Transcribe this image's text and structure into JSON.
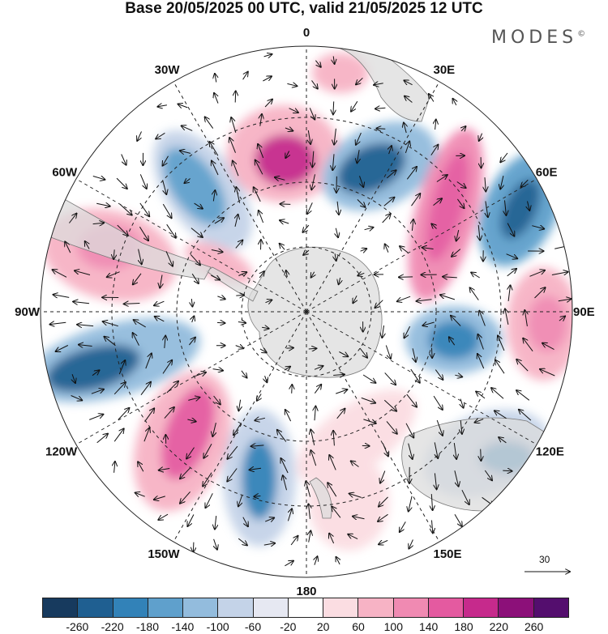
{
  "title": "Base 20/05/2025 00 UTC, valid 21/05/2025 12 UTC",
  "brand": "MODES",
  "brand_mark": "©",
  "longitude_labels": [
    {
      "text": "0",
      "lon": 0
    },
    {
      "text": "30E",
      "lon": 30
    },
    {
      "text": "60E",
      "lon": 60
    },
    {
      "text": "90E",
      "lon": 90
    },
    {
      "text": "120E",
      "lon": 120
    },
    {
      "text": "150E",
      "lon": 150
    },
    {
      "text": "180",
      "lon": 180
    },
    {
      "text": "150W",
      "lon": 210
    },
    {
      "text": "120W",
      "lon": 240
    },
    {
      "text": "90W",
      "lon": 270
    },
    {
      "text": "60W",
      "lon": 300
    },
    {
      "text": "30W",
      "lon": 330
    }
  ],
  "reference_vector": {
    "label": "30",
    "icon": "arrow-right-icon"
  },
  "colorbar": {
    "ticks": [
      "-260",
      "-220",
      "-180",
      "-140",
      "-100",
      "-60",
      "-20",
      "20",
      "60",
      "100",
      "140",
      "180",
      "220",
      "260"
    ],
    "colors": [
      "#173a5e",
      "#1f5f91",
      "#3282b8",
      "#5fa0cc",
      "#93bcdd",
      "#c4d3e8",
      "#e6e8f2",
      "#ffffff",
      "#fbdde2",
      "#f7b3c5",
      "#f08ab2",
      "#e45aa0",
      "#c62a8c",
      "#8c1079",
      "#540e6e"
    ]
  },
  "colors": {
    "land": "#e6e6e6",
    "coast": "#7a7a7a",
    "grid": "#222222"
  }
}
